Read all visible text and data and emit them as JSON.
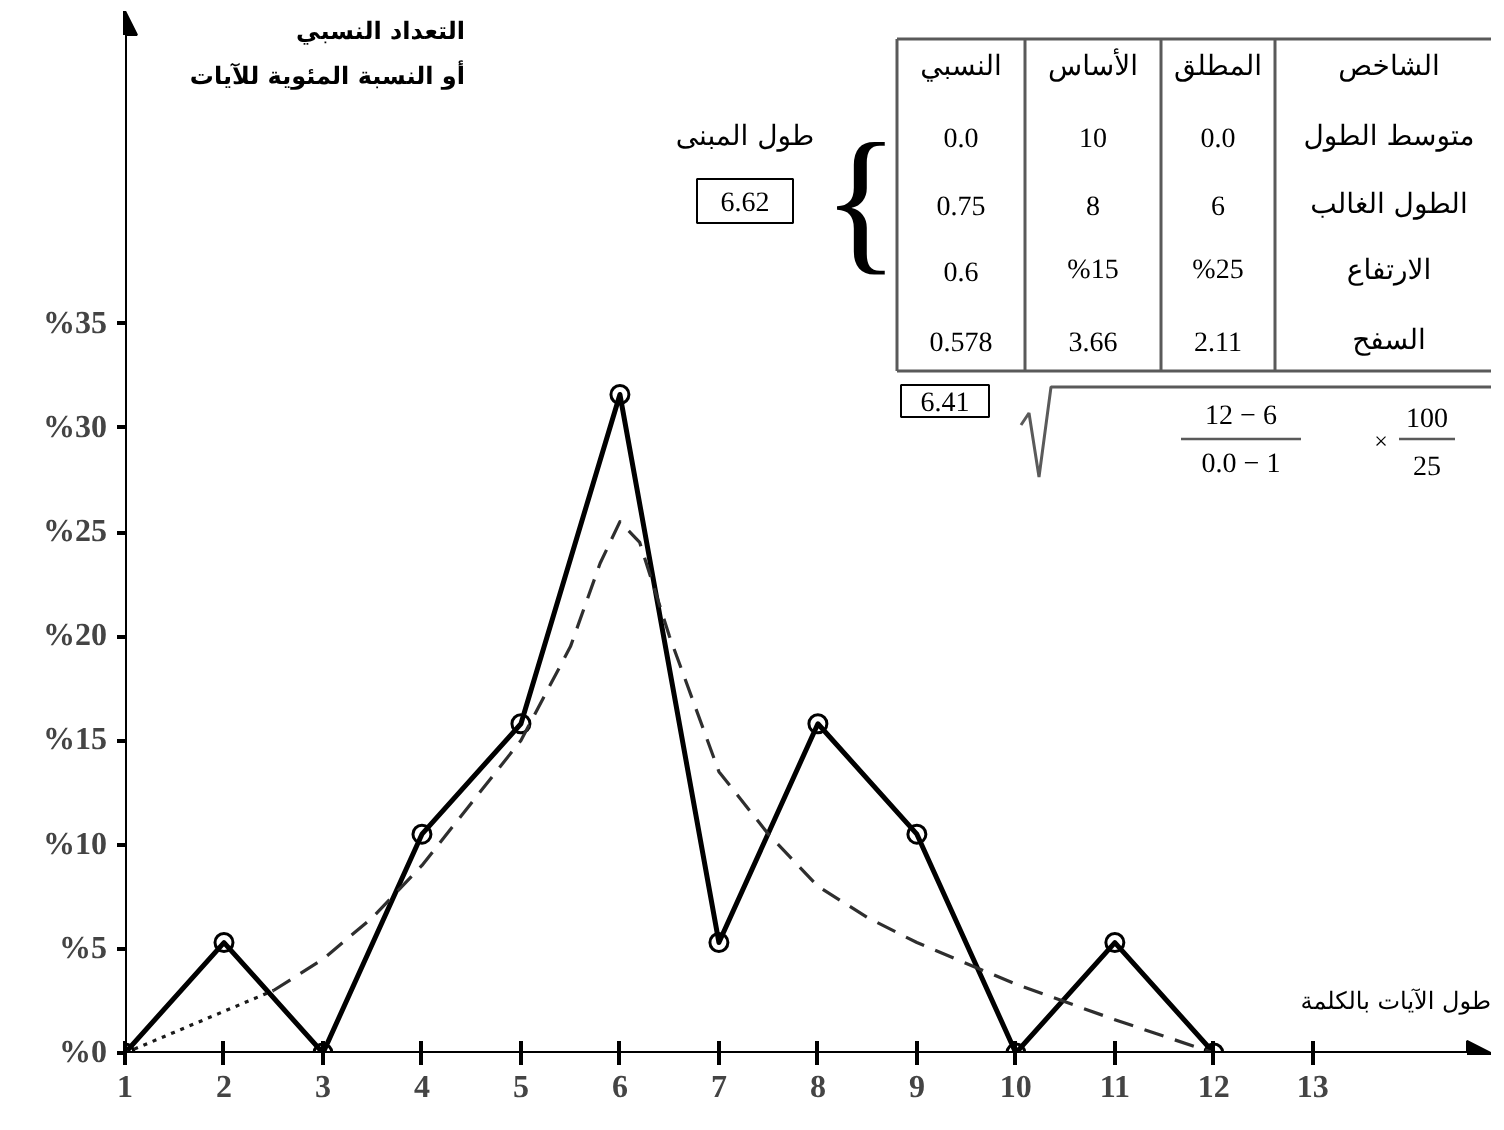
{
  "chart_data": {
    "type": "line",
    "xlabel": "طول الآيات بالكلمة",
    "ylabel": "التعداد النسبي\nأو النسبة المئوية للآيات",
    "x": [
      1,
      2,
      3,
      4,
      5,
      6,
      7,
      8,
      9,
      10,
      11,
      12
    ],
    "series": [
      {
        "color": "#000000",
        "marker": "circle",
        "line_style": "solid",
        "values": [
          0,
          5.3,
          0,
          10.5,
          15.8,
          31.6,
          5.3,
          15.8,
          10.5,
          0,
          5.3,
          0
        ]
      },
      {
        "color": "#1a1a1a",
        "marker": "none",
        "line_style": "dotted",
        "x": [
          1,
          1.5,
          2,
          2.5
        ],
        "values": [
          0,
          1,
          2,
          3
        ]
      },
      {
        "color": "#2e2e2e",
        "marker": "none",
        "line_style": "dashed",
        "x": [
          2.5,
          3,
          3.5,
          4,
          4.5,
          5,
          5.5,
          5.8,
          6,
          6.2,
          6.5,
          7,
          7.5,
          8,
          8.5,
          9,
          10,
          11,
          12
        ],
        "values": [
          3,
          4.5,
          6.5,
          9,
          12,
          15,
          19.5,
          23.5,
          25.5,
          24.5,
          20,
          13.5,
          10.5,
          8,
          6.5,
          5.3,
          3.3,
          1.6,
          0
        ]
      }
    ],
    "xlim": [
      1,
      14.8
    ],
    "ylim": [
      0,
      50
    ],
    "xticks": [
      1,
      2,
      3,
      4,
      5,
      6,
      7,
      8,
      9,
      10,
      11,
      12,
      13
    ],
    "yticks": [
      {
        "value": 0,
        "label": "%0"
      },
      {
        "value": 5,
        "label": "%5"
      },
      {
        "value": 10,
        "label": "%10"
      },
      {
        "value": 15,
        "label": "%15"
      },
      {
        "value": 20,
        "label": "%20"
      },
      {
        "value": 25,
        "label": "%25"
      },
      {
        "value": 30,
        "label": "%30"
      },
      {
        "value": 35,
        "label": "%35"
      }
    ],
    "grid": false,
    "annotations": [
      "الشاخص",
      "المطلق",
      "الأساس",
      "النسبي",
      "متوسط الطول",
      "0.0",
      "10",
      "0.0",
      "الطول الغالب",
      "6",
      "8",
      "0.75",
      "الارتفاع",
      "%25",
      "%15",
      "0.6",
      "السفح",
      "2.11",
      "3.66",
      "0.578",
      "طول المبنى",
      "6.62",
      "6.41",
      "12 − 6",
      "0.0 − 1",
      "×",
      "100",
      "25",
      "{"
    ]
  }
}
